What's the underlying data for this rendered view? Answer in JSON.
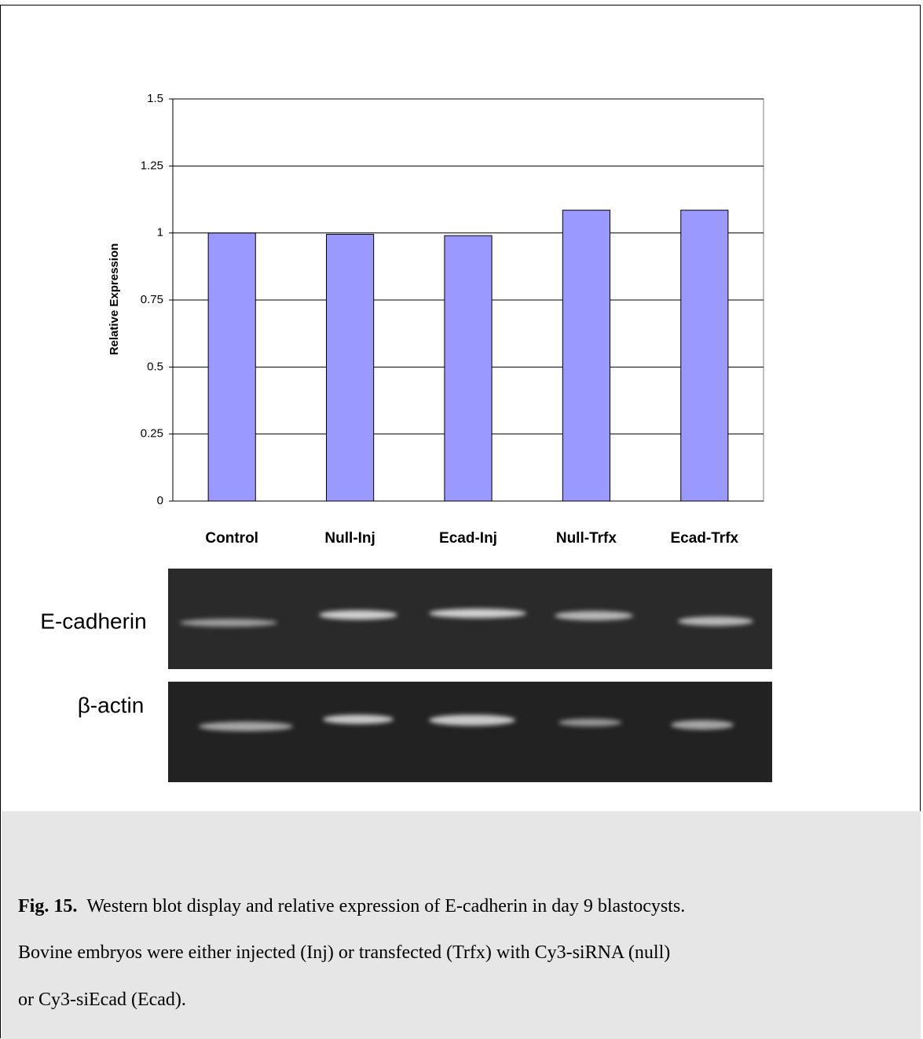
{
  "chart_data": {
    "type": "bar",
    "y_label": "Relative Expression",
    "categories": [
      "Control",
      "Null-Inj",
      "Ecad-Inj",
      "Null-Trfx",
      "Ecad-Trfx"
    ],
    "values": [
      1,
      0.995,
      0.99,
      1.085,
      1.085
    ],
    "color": "#9999ff",
    "ylim": [
      0,
      1.5
    ],
    "yticks": [
      0,
      0.25,
      0.5,
      0.75,
      1,
      1.25,
      1.5
    ],
    "grid": true
  },
  "blot": {
    "labels": [
      "E-cadherin",
      "β-actin"
    ]
  },
  "caption": {
    "label": "Fig. 15.",
    "lines": [
      "Western blot display and relative expression of E-cadherin in day 9 blastocysts.",
      "Bovine embryos were either injected (Inj) or transfected (Trfx) with Cy3-siRNA (null)",
      "or Cy3-siEcad (Ecad)."
    ]
  }
}
